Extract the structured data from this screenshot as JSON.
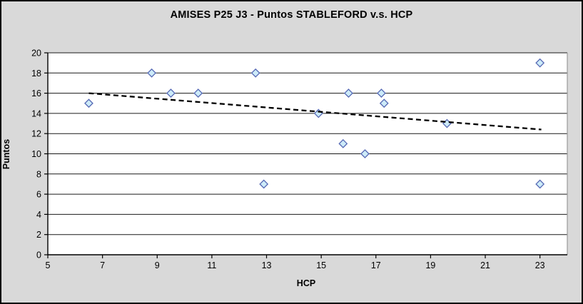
{
  "chart_data": {
    "type": "scatter",
    "title": "AMISES P25 J3 - Puntos STABLEFORD v.s. HCP",
    "xlabel": "HCP",
    "ylabel": "Puntos",
    "xlim": [
      5,
      24
    ],
    "ylim": [
      0,
      20
    ],
    "x_ticks": [
      5,
      7,
      9,
      11,
      13,
      15,
      17,
      19,
      21,
      23
    ],
    "y_ticks": [
      0,
      2,
      4,
      6,
      8,
      10,
      12,
      14,
      16,
      18,
      20
    ],
    "grid": "horizontal",
    "legend_position": "none",
    "series": [
      {
        "name": "Puntos STABLEFORD",
        "type": "scatter",
        "marker": "diamond",
        "points": [
          [
            6.5,
            15
          ],
          [
            8.8,
            18
          ],
          [
            9.5,
            16
          ],
          [
            10.5,
            16
          ],
          [
            12.6,
            18
          ],
          [
            12.9,
            7
          ],
          [
            14.9,
            14
          ],
          [
            15.8,
            11
          ],
          [
            16.0,
            16
          ],
          [
            16.6,
            10
          ],
          [
            17.2,
            16
          ],
          [
            17.3,
            15
          ],
          [
            19.6,
            13
          ],
          [
            23.0,
            19
          ],
          [
            23.0,
            7
          ]
        ]
      },
      {
        "name": "Tendencia",
        "type": "trendline",
        "style": "dashed",
        "points": [
          [
            6.5,
            16.0
          ],
          [
            23.05,
            12.4
          ]
        ]
      }
    ],
    "colors": {
      "background": "#D9D9D9",
      "plot_background": "#FFFFFF",
      "frame_border": "#000000",
      "axis_line": "#000000",
      "gridline": "#1A1A1A",
      "plot_border": "#9A9A9A",
      "tick_text": "#000000",
      "marker_fill": "#CDEBF8",
      "marker_stroke": "#5568B4",
      "trendline": "#000000"
    }
  }
}
